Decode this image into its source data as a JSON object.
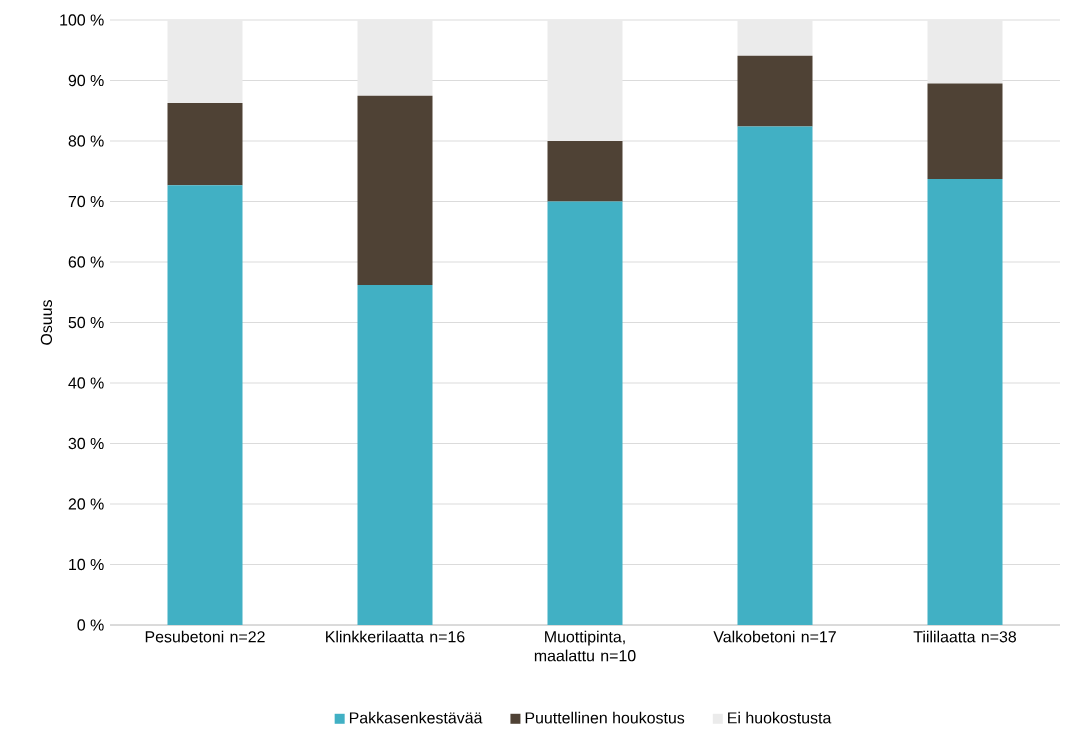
{
  "chart_data": {
    "type": "bar",
    "stacked": true,
    "ylabel": "Osuus",
    "categories": [
      "Pesubetoni n=22",
      "Klinkkerilaatta n=16",
      "Muottipinta, maalattu n=10",
      "Valkobetoni n=17",
      "Tiililaatta n=38"
    ],
    "series": [
      {
        "name": "Pakkasenkestävää",
        "color": "#41b0c4",
        "values": [
          72.7,
          56.2,
          70.0,
          82.4,
          73.7
        ]
      },
      {
        "name": "Puuttellinen houkostus",
        "color": "#4f4235",
        "values": [
          13.6,
          31.3,
          10.0,
          11.7,
          15.8
        ]
      },
      {
        "name": "Ei huokostusta",
        "color": "#ebebeb",
        "values": [
          13.7,
          12.5,
          20.0,
          5.9,
          10.5
        ]
      }
    ],
    "ylim": [
      0,
      100
    ],
    "yticks": [
      {
        "value": 0,
        "label": "0 %"
      },
      {
        "value": 10,
        "label": "10 %"
      },
      {
        "value": 20,
        "label": "20 %"
      },
      {
        "value": 30,
        "label": "30 %"
      },
      {
        "value": 40,
        "label": "40 %"
      },
      {
        "value": 50,
        "label": "50 %"
      },
      {
        "value": 60,
        "label": "60 %"
      },
      {
        "value": 70,
        "label": "70 %"
      },
      {
        "value": 80,
        "label": "80 %"
      },
      {
        "value": 90,
        "label": "90 %"
      },
      {
        "value": 100,
        "label": "100 %"
      }
    ],
    "grid": "y",
    "legend": "bottom"
  }
}
